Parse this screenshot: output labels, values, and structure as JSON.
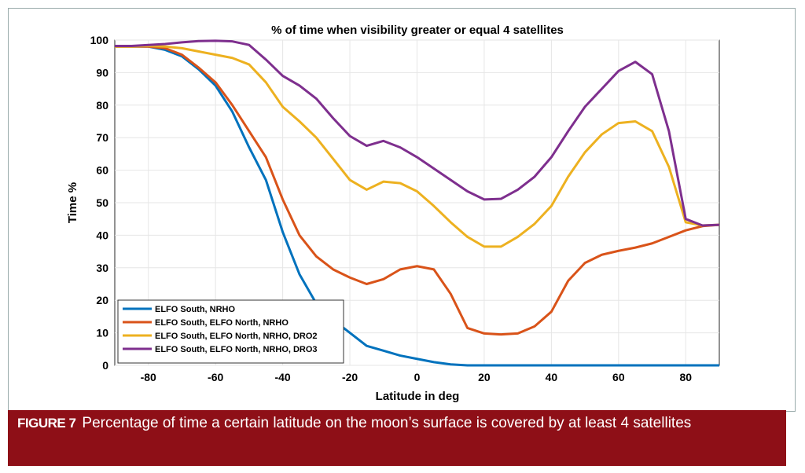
{
  "chart_data": {
    "type": "line",
    "title": "% of time when visibility greater or equal 4 satellites",
    "xlabel": "Latitude in deg",
    "ylabel": "Time %",
    "xlim": [
      -90,
      90
    ],
    "ylim": [
      0,
      100
    ],
    "xticks": [
      -80,
      -60,
      -40,
      -20,
      0,
      20,
      40,
      60,
      80
    ],
    "yticks": [
      0,
      10,
      20,
      30,
      40,
      50,
      60,
      70,
      80,
      90,
      100
    ],
    "grid": true,
    "legend_position": "bottom-left",
    "x": [
      -90,
      -85,
      -80,
      -75,
      -70,
      -65,
      -60,
      -55,
      -50,
      -45,
      -40,
      -35,
      -30,
      -25,
      -20,
      -15,
      -10,
      -5,
      0,
      5,
      10,
      15,
      20,
      25,
      30,
      35,
      40,
      45,
      50,
      55,
      60,
      65,
      70,
      75,
      80,
      85,
      90
    ],
    "series": [
      {
        "name": "ELFO South, NRHO",
        "color": "#0072BD",
        "values": [
          98,
          98,
          98,
          97,
          95,
          91,
          86,
          78,
          67,
          57,
          41,
          28,
          19,
          14,
          10,
          6,
          4.5,
          3,
          2,
          1,
          0.3,
          0,
          0,
          0,
          0,
          0,
          0,
          0,
          0,
          0,
          0,
          0,
          0,
          0,
          0,
          0,
          0
        ]
      },
      {
        "name": "ELFO South, ELFO North, NRHO",
        "color": "#D95319",
        "values": [
          98,
          98,
          98,
          97.5,
          95.5,
          91.5,
          87,
          80,
          72,
          64,
          51,
          40,
          33.5,
          29.5,
          27,
          25,
          26.5,
          29.5,
          30.5,
          29.5,
          22,
          11.5,
          9.8,
          9.5,
          9.8,
          12,
          16.5,
          26,
          31.5,
          34,
          35.2,
          36.2,
          37.5,
          39.5,
          41.5,
          42.8,
          43.2
        ]
      },
      {
        "name": "ELFO South, ELFO North, NRHO, DRO2",
        "color": "#EDB120",
        "values": [
          98,
          98,
          98.2,
          98,
          97.5,
          96.5,
          95.5,
          94.5,
          92.5,
          87,
          79.5,
          75,
          70,
          63.5,
          57,
          54,
          56.5,
          56,
          53.5,
          49,
          44,
          39.5,
          36.5,
          36.5,
          39.5,
          43.5,
          49,
          58,
          65.5,
          71,
          74.5,
          75,
          72,
          61,
          44,
          43,
          43.2
        ]
      },
      {
        "name": "ELFO South, ELFO North, NRHO, DRO3",
        "color": "#7E2F8E",
        "values": [
          98.2,
          98.2,
          98.5,
          98.8,
          99.3,
          99.7,
          99.8,
          99.6,
          98.5,
          94,
          89,
          86,
          82,
          76,
          70.5,
          67.5,
          69,
          67,
          64,
          60.5,
          57,
          53.5,
          51,
          51.2,
          54,
          58,
          64,
          72,
          79.5,
          85,
          90.5,
          93.3,
          89.5,
          72,
          45,
          43,
          43.2
        ]
      }
    ]
  },
  "caption": {
    "label": "FIGURE 7",
    "text": "Percentage of time a certain latitude on the moon’s surface is covered by at least 4 satellites"
  }
}
